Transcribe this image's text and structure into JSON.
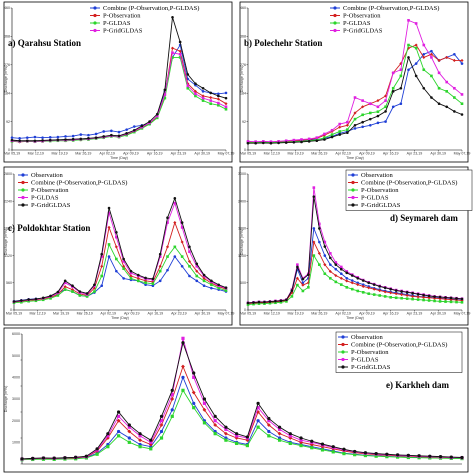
{
  "legend_labels": {
    "observation": "Observation",
    "combine": "Combine (P-Observation,P-GLDAS)",
    "p_observation": "P-Observation",
    "p_gldas": "P-GLDAS",
    "p_gridgldas": "P-GridGLDAS"
  },
  "colors": {
    "observation": "#1f3fd6",
    "combine": "#d32020",
    "p_observation": "#2cd52c",
    "p_gldas": "#e020e0",
    "p_gridgldas": "#111111"
  },
  "chart_data": [
    {
      "type": "line",
      "title": "a) Qarahsu Station",
      "xlabel": "Time (Day)",
      "ylabel": "Discharge (m³/s)",
      "ylim": [
        0,
        460
      ],
      "x_ticks": [
        "Mar 05,19",
        "Mar 12,19",
        "Mar 19,19",
        "Mar 26,19",
        "Apr 02,19",
        "Apr 09,19",
        "Apr 16,19",
        "Apr 23,19",
        "Apr 30,19",
        "May 07,19"
      ],
      "legend": [
        "Combine (P-Observation,P-GLDAS)",
        "P-Observation",
        "P-GLDAS",
        "P-GridGLDAS"
      ],
      "series": [
        {
          "key": "observation",
          "values": [
            40,
            38,
            40,
            42,
            40,
            41,
            42,
            44,
            45,
            50,
            48,
            52,
            60,
            62,
            58,
            66,
            76,
            80,
            84,
            110,
            190,
            300,
            340,
            230,
            210,
            190,
            185,
            182,
            185
          ]
        },
        {
          "key": "combine",
          "values": [
            28,
            26,
            28,
            27,
            28,
            30,
            31,
            30,
            32,
            33,
            35,
            38,
            40,
            45,
            42,
            50,
            60,
            72,
            86,
            108,
            178,
            330,
            320,
            215,
            190,
            175,
            170,
            165,
            150
          ]
        },
        {
          "key": "p_observation",
          "values": [
            28,
            27,
            28,
            27,
            28,
            29,
            30,
            30,
            31,
            33,
            34,
            37,
            40,
            44,
            42,
            48,
            58,
            70,
            84,
            104,
            168,
            300,
            300,
            200,
            175,
            160,
            150,
            145,
            132
          ]
        },
        {
          "key": "p_gldas",
          "values": [
            30,
            28,
            29,
            28,
            29,
            31,
            32,
            32,
            33,
            35,
            36,
            39,
            42,
            46,
            44,
            52,
            62,
            74,
            88,
            110,
            180,
            315,
            310,
            208,
            182,
            168,
            160,
            152,
            140
          ]
        },
        {
          "key": "p_gridgldas",
          "values": [
            32,
            30,
            30,
            30,
            31,
            32,
            33,
            34,
            35,
            36,
            38,
            40,
            44,
            48,
            46,
            54,
            64,
            78,
            92,
            116,
            195,
            430,
            350,
            245,
            215,
            200,
            185,
            175,
            168
          ]
        }
      ]
    },
    {
      "type": "line",
      "title": "b) Polechehr Station",
      "xlabel": "Time (Day)",
      "ylabel": "Discharge (m³/s)",
      "ylim": [
        0,
        460
      ],
      "x_ticks": [
        "Mar 05,19",
        "Mar 12,19",
        "Mar 19,19",
        "Mar 26,19",
        "Apr 02,19",
        "Apr 09,19",
        "Apr 16,19",
        "Apr 23,19",
        "Apr 30,19",
        "May 07,19"
      ],
      "legend": [
        "Combine (P-Observation,P-GLDAS)",
        "P-Observation",
        "P-GLDAS",
        "P-GridGLDAS"
      ],
      "series": [
        {
          "key": "observation",
          "values": [
            25,
            24,
            26,
            25,
            26,
            27,
            28,
            30,
            32,
            34,
            38,
            44,
            54,
            60,
            70,
            75,
            80,
            88,
            92,
            140,
            150,
            260,
            280,
            310,
            320,
            290,
            300,
            310,
            280
          ]
        },
        {
          "key": "combine",
          "values": [
            26,
            25,
            26,
            25,
            27,
            28,
            30,
            32,
            34,
            38,
            48,
            60,
            74,
            80,
            120,
            140,
            150,
            160,
            175,
            250,
            280,
            330,
            340,
            300,
            310,
            290,
            300,
            290,
            290
          ]
        },
        {
          "key": "p_observation",
          "values": [
            24,
            24,
            25,
            24,
            25,
            26,
            27,
            28,
            30,
            32,
            40,
            50,
            60,
            66,
            100,
            114,
            120,
            124,
            140,
            200,
            240,
            340,
            330,
            260,
            240,
            200,
            190,
            170,
            150
          ]
        },
        {
          "key": "p_gldas",
          "values": [
            28,
            27,
            28,
            27,
            28,
            30,
            32,
            34,
            36,
            40,
            52,
            64,
            84,
            90,
            170,
            160,
            150,
            140,
            160,
            250,
            260,
            420,
            410,
            340,
            300,
            250,
            220,
            200,
            180
          ]
        },
        {
          "key": "p_gridgldas",
          "values": [
            22,
            22,
            23,
            22,
            23,
            24,
            25,
            26,
            28,
            30,
            34,
            42,
            50,
            56,
            80,
            90,
            100,
            110,
            125,
            190,
            200,
            300,
            240,
            200,
            170,
            150,
            140,
            125,
            115
          ]
        }
      ]
    },
    {
      "type": "line",
      "title": "c) Poldokhtar Station",
      "xlabel": "Time (Day)",
      "ylabel": "Discharge (m³/s)",
      "ylim": [
        0,
        2800
      ],
      "x_ticks": [
        "Mar 05,19",
        "Mar 12,19",
        "Mar 19,19",
        "Mar 26,19",
        "Apr 02,19",
        "Apr 09,19",
        "Apr 16,19",
        "Apr 23,19",
        "Apr 30,19",
        "May 07,19"
      ],
      "legend": [
        "Observation",
        "Combine (P-Observation,P-GLDAS)",
        "P-Observation",
        "P-GLDAS",
        "P-GridGLDAS"
      ],
      "series": [
        {
          "key": "observation",
          "values": [
            180,
            200,
            220,
            230,
            240,
            280,
            350,
            420,
            380,
            300,
            280,
            360,
            500,
            1100,
            800,
            650,
            620,
            600,
            520,
            500,
            600,
            820,
            1100,
            900,
            700,
            600,
            500,
            450,
            420,
            380
          ]
        },
        {
          "key": "combine",
          "values": [
            160,
            180,
            200,
            210,
            230,
            260,
            320,
            480,
            420,
            330,
            300,
            450,
            900,
            1700,
            1300,
            900,
            700,
            650,
            600,
            580,
            900,
            1300,
            1800,
            1400,
            1000,
            800,
            650,
            550,
            480,
            430
          ]
        },
        {
          "key": "p_observation",
          "values": [
            150,
            160,
            180,
            190,
            210,
            240,
            300,
            420,
            380,
            300,
            280,
            380,
            700,
            1350,
            1050,
            850,
            650,
            600,
            560,
            540,
            800,
            1100,
            1300,
            1100,
            900,
            700,
            600,
            520,
            450,
            400
          ]
        },
        {
          "key": "p_gldas",
          "values": [
            170,
            190,
            210,
            220,
            240,
            280,
            350,
            560,
            480,
            360,
            320,
            500,
            1100,
            2000,
            1500,
            1000,
            760,
            700,
            640,
            620,
            1100,
            1800,
            2200,
            1700,
            1200,
            900,
            700,
            580,
            500,
            450
          ]
        },
        {
          "key": "p_gridgldas",
          "values": [
            175,
            195,
            215,
            225,
            250,
            290,
            370,
            600,
            500,
            380,
            340,
            520,
            1150,
            2100,
            1600,
            1050,
            800,
            720,
            660,
            640,
            1150,
            1900,
            2300,
            1800,
            1300,
            950,
            720,
            600,
            520,
            460
          ]
        }
      ]
    },
    {
      "type": "line",
      "title": "d) Seymareh dam",
      "xlabel": "Time (Day)",
      "ylabel": "Discharge (m³/s)",
      "ylim": [
        0,
        3000
      ],
      "x_ticks": [
        "Mar 05,19",
        "Mar 12,19",
        "Mar 19,19",
        "Mar 26,19",
        "Apr 02,19",
        "Apr 09,19",
        "Apr 16,19",
        "Apr 23,19",
        "Apr 30,19",
        "May 07,19"
      ],
      "legend": [
        "Observation",
        "Combine (P-Observation,P-GLDAS)",
        "P-Observation",
        "P-GLDAS",
        "P-GridGLDAS"
      ],
      "series": [
        {
          "key": "observation",
          "values": [
            150,
            160,
            170,
            165,
            180,
            190,
            200,
            220,
            400,
            900,
            600,
            700,
            1800,
            1500,
            1200,
            1000,
            900,
            800,
            700,
            650,
            600,
            560,
            520,
            480,
            450,
            420,
            400,
            380,
            360,
            340,
            320,
            300,
            290,
            280,
            270,
            260,
            250,
            240,
            230,
            220
          ]
        },
        {
          "key": "combine",
          "values": [
            140,
            150,
            160,
            160,
            170,
            180,
            190,
            210,
            380,
            700,
            550,
            600,
            1500,
            1250,
            1000,
            850,
            760,
            700,
            640,
            600,
            560,
            520,
            490,
            460,
            430,
            400,
            380,
            360,
            340,
            320,
            300,
            290,
            280,
            270,
            260,
            250,
            240,
            230,
            220,
            210
          ]
        },
        {
          "key": "p_observation",
          "values": [
            120,
            130,
            140,
            140,
            150,
            160,
            170,
            190,
            300,
            550,
            420,
            500,
            1200,
            1000,
            800,
            700,
            620,
            560,
            500,
            460,
            420,
            390,
            360,
            340,
            320,
            300,
            280,
            270,
            260,
            250,
            240,
            230,
            220,
            210,
            200,
            190,
            185,
            180,
            175,
            170
          ]
        },
        {
          "key": "p_gldas",
          "values": [
            160,
            170,
            180,
            180,
            190,
            200,
            210,
            230,
            450,
            1000,
            700,
            800,
            2700,
            1900,
            1500,
            1250,
            1050,
            950,
            850,
            780,
            720,
            660,
            610,
            570,
            530,
            500,
            470,
            440,
            420,
            400,
            380,
            360,
            340,
            320,
            300,
            290,
            280,
            270,
            260,
            250
          ]
        },
        {
          "key": "p_gridgldas",
          "values": [
            155,
            165,
            175,
            175,
            185,
            195,
            205,
            225,
            430,
            950,
            680,
            780,
            2500,
            1800,
            1400,
            1150,
            1000,
            900,
            820,
            760,
            700,
            650,
            600,
            560,
            520,
            490,
            460,
            430,
            410,
            390,
            370,
            350,
            330,
            310,
            295,
            285,
            275,
            265,
            255,
            245
          ]
        }
      ]
    },
    {
      "type": "line",
      "title": "e) Karkheh dam",
      "xlabel": "",
      "ylabel": "Discharge (m³/s)",
      "ylim": [
        0,
        6000
      ],
      "y_ticks": [
        "6000",
        "5000",
        "4000",
        "3000",
        "2000",
        "1000"
      ],
      "legend": [
        "Observation",
        "Combine (P-Observation,P-GLDAS)",
        "P-Observation",
        "P-GLDAS",
        "P-GridGLDAS"
      ],
      "series": [
        {
          "key": "observation",
          "values": [
            200,
            220,
            240,
            230,
            250,
            260,
            300,
            500,
            900,
            1500,
            1200,
            900,
            800,
            1500,
            2500,
            4000,
            2800,
            2000,
            1500,
            1200,
            1000,
            900,
            2000,
            1500,
            1200,
            1000,
            900,
            800,
            700,
            600,
            500,
            450,
            400,
            380,
            350,
            330,
            310,
            300,
            290,
            280,
            270,
            260
          ]
        },
        {
          "key": "combine",
          "values": [
            220,
            240,
            260,
            250,
            270,
            280,
            320,
            600,
            1200,
            2000,
            1500,
            1100,
            900,
            1800,
            3000,
            4500,
            3300,
            2500,
            1800,
            1400,
            1200,
            1100,
            2400,
            1800,
            1400,
            1200,
            1000,
            900,
            800,
            700,
            600,
            520,
            470,
            430,
            400,
            380,
            360,
            340,
            320,
            300,
            290,
            280
          ]
        },
        {
          "key": "p_observation",
          "values": [
            200,
            210,
            220,
            215,
            230,
            240,
            280,
            450,
            800,
            1300,
            1000,
            800,
            700,
            1200,
            2200,
            3400,
            2600,
            1900,
            1400,
            1100,
            950,
            850,
            1700,
            1300,
            1100,
            950,
            850,
            750,
            650,
            560,
            480,
            430,
            390,
            360,
            340,
            320,
            300,
            290,
            280,
            270,
            260,
            250
          ]
        },
        {
          "key": "p_gldas",
          "values": [
            230,
            250,
            270,
            260,
            280,
            300,
            340,
            650,
            1300,
            2200,
            1700,
            1300,
            1000,
            2000,
            3200,
            5800,
            4000,
            2800,
            2000,
            1600,
            1300,
            1200,
            2600,
            2000,
            1600,
            1300,
            1100,
            1000,
            880,
            760,
            650,
            560,
            500,
            460,
            430,
            400,
            380,
            360,
            340,
            320,
            300,
            290
          ]
        },
        {
          "key": "p_gridgldas",
          "values": [
            240,
            260,
            280,
            270,
            290,
            310,
            360,
            700,
            1400,
            2400,
            1800,
            1400,
            1100,
            2200,
            3400,
            5600,
            4200,
            3000,
            2200,
            1700,
            1400,
            1250,
            2800,
            2100,
            1700,
            1400,
            1200,
            1050,
            920,
            800,
            680,
            580,
            520,
            480,
            450,
            420,
            400,
            380,
            360,
            340,
            320,
            300
          ]
        }
      ]
    }
  ]
}
